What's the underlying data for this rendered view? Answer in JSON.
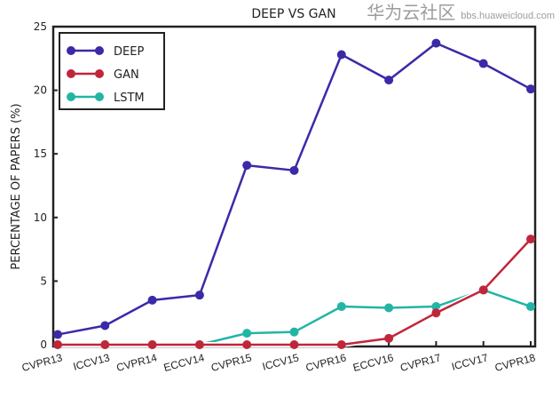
{
  "chart_data": {
    "type": "line",
    "title": "DEEP VS GAN",
    "xlabel": "",
    "ylabel": "PERCENTAGE OF PAPERS (%)",
    "categories": [
      "CVPR13",
      "ICCV13",
      "CVPR14",
      "ECCV14",
      "CVPR15",
      "ICCV15",
      "CVPR16",
      "ECCV16",
      "CVPR17",
      "ICCV17",
      "CVPR18"
    ],
    "ylim": [
      0,
      25
    ],
    "yticks": [
      "0",
      "5",
      "10",
      "15",
      "20",
      "25"
    ],
    "grid": false,
    "legend_position": "top-left",
    "series": [
      {
        "name": "DEEP",
        "color": "#3b2aa8",
        "values": [
          0.8,
          1.5,
          3.5,
          3.9,
          14.1,
          13.7,
          22.8,
          20.8,
          23.7,
          22.1,
          20.1
        ]
      },
      {
        "name": "GAN",
        "color": "#c0263a",
        "values": [
          0,
          0,
          0,
          0,
          0,
          0,
          0,
          0.5,
          2.5,
          4.3,
          8.3
        ]
      },
      {
        "name": "LSTM",
        "color": "#22b5a6",
        "values": [
          0,
          0,
          0,
          0,
          0.9,
          1.0,
          3.0,
          2.9,
          3.0,
          4.3,
          3.0
        ]
      }
    ]
  },
  "watermark": {
    "line1": "华为云社区",
    "line2": "bbs.huaweicloud.com"
  }
}
